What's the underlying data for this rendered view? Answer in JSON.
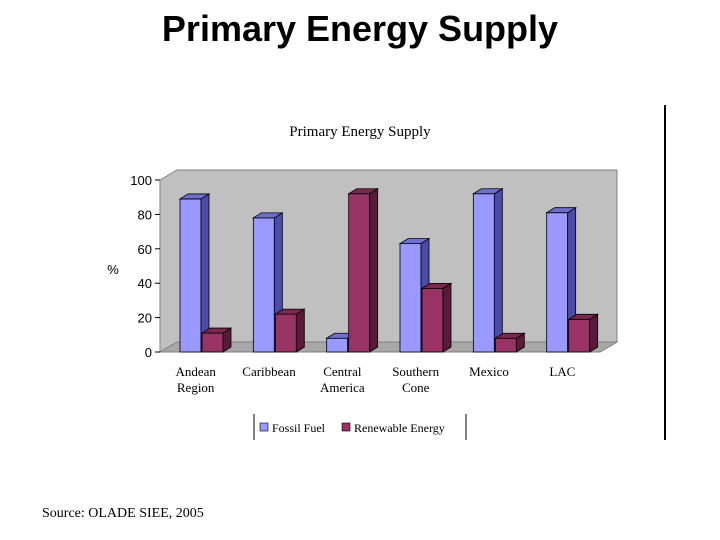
{
  "slide": {
    "title": "Primary Energy Supply",
    "source": "Source: OLADE SIEE, 2005"
  },
  "chart_data": {
    "type": "bar",
    "title": "Primary Energy Supply",
    "ylabel": "%",
    "xlabel": "",
    "ylim": [
      0,
      100
    ],
    "yticks": [
      0,
      20,
      40,
      60,
      80,
      100
    ],
    "categories": [
      [
        "Andean",
        "Region"
      ],
      [
        "Caribbean"
      ],
      [
        "Central",
        "America"
      ],
      [
        "Southern",
        "Cone"
      ],
      [
        "Mexico"
      ],
      [
        "LAC"
      ]
    ],
    "series": [
      {
        "name": "Fossil Fuel",
        "color": "#9999ff",
        "side": "#4b4ba8",
        "top": "#6f6fd0",
        "values": [
          89,
          78,
          8,
          63,
          92,
          81
        ]
      },
      {
        "name": "Renewable Energy",
        "color": "#993366",
        "side": "#5a1a3a",
        "top": "#7a2850",
        "values": [
          11,
          22,
          92,
          37,
          8,
          19
        ]
      }
    ],
    "legend_position": "bottom",
    "style": "3d-clustered-column",
    "wall_color": "#c0c0c0"
  }
}
